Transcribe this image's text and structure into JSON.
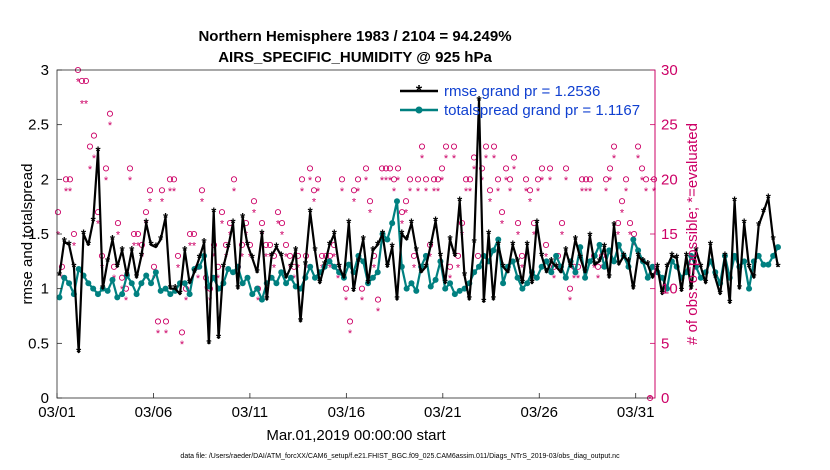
{
  "chart_data": {
    "type": "line",
    "title_line1": "Northern Hemisphere 1983 / 2104 = 94.249%",
    "title_line2": "AIRS_SPECIFIC_HUMIDITY @ 925 hPa",
    "xlabel": "Mar.01,2019 00:00:00 start",
    "ylabel": "rmse and totalspread",
    "ylabel_right": "# of obs: o=possible; *=evaluated",
    "footer": "data file: /Users/raeder/DAI/ATM_forcXX/CAM6_setup/f.e21.FHIST_BGC.f09_025.CAM6assim.011/Diags_NTrS_2019-03/obs_diag_output.nc",
    "x_ticks": [
      "03/01",
      "03/06",
      "03/11",
      "03/16",
      "03/21",
      "03/26",
      "03/31"
    ],
    "x_tick_days": [
      1,
      6,
      11,
      16,
      21,
      26,
      31
    ],
    "xlim": [
      1,
      32
    ],
    "ylim": [
      0,
      3
    ],
    "y_ticks": [
      "0",
      "0.5",
      "1",
      "1.5",
      "2",
      "2.5",
      "3"
    ],
    "ylim_right": [
      0,
      30
    ],
    "y_ticks_right": [
      "0",
      "5",
      "10",
      "15",
      "20",
      "25",
      "30"
    ],
    "legend": {
      "position": "top-right",
      "entries": [
        "rmse grand pr = 1.2536",
        "totalspread grand pr = 1.1167"
      ]
    },
    "colors": {
      "rmse": "#000000",
      "spread": "#008080",
      "obs": "#cc0066",
      "legend_text": "#1040d0"
    },
    "series": [
      {
        "name": "rmse",
        "start_day": 1.125,
        "step_day": 0.25,
        "values": [
          1.12,
          1.43,
          1.4,
          1.2,
          0.42,
          1.5,
          1.4,
          1.62,
          2.26,
          1.0,
          1.25,
          1.45,
          1.2,
          1.35,
          1.12,
          1.35,
          1.1,
          1.3,
          1.6,
          1.4,
          1.38,
          1.45,
          1.65,
          1.0,
          1.0,
          0.95,
          1.35,
          1.05,
          1.15,
          1.28,
          1.42,
          0.5,
          1.7,
          0.55,
          1.2,
          1.38,
          1.6,
          1.0,
          1.65,
          1.4,
          1.28,
          1.15,
          1.5,
          0.9,
          1.3,
          1.38,
          1.3,
          1.1,
          1.2,
          1.35,
          0.7,
          1.22,
          1.7,
          1.35,
          1.05,
          1.22,
          1.4,
          1.5,
          1.2,
          1.1,
          1.6,
          0.98,
          1.25,
          1.45,
          1.05,
          1.35,
          1.4,
          1.5,
          1.2,
          1.38,
          0.9,
          1.5,
          1.45,
          1.6,
          1.35,
          1.15,
          1.2,
          1.4,
          1.62,
          1.3,
          1.05,
          1.45,
          1.3,
          1.8,
          1.12,
          0.9,
          1.42,
          2.72,
          0.88,
          1.5,
          0.9,
          1.4,
          1.2,
          1.15,
          1.4,
          1.25,
          1.05,
          1.4,
          1.05,
          1.6,
          1.3,
          1.15,
          1.25,
          1.2,
          1.15,
          1.35,
          1.2,
          1.45,
          1.28,
          1.15,
          1.48,
          1.22,
          1.25,
          1.38,
          1.1,
          1.58,
          1.22,
          1.3,
          1.25,
          1.0,
          1.3,
          1.25,
          1.22,
          1.1,
          1.2,
          0.95,
          1.2,
          1.3,
          1.28,
          0.98,
          1.3,
          1.0,
          1.35,
          1.2,
          1.05,
          1.4,
          1.1,
          0.95,
          1.3,
          0.87,
          1.8,
          1.0,
          1.6,
          1.2,
          1.1,
          1.58,
          1.7,
          1.83,
          1.45,
          1.2
        ]
      },
      {
        "name": "totalspread",
        "start_day": 1.125,
        "step_day": 0.25,
        "values": [
          0.92,
          1.1,
          1.05,
          0.95,
          1.18,
          1.12,
          1.05,
          1.0,
          0.95,
          1.0,
          0.98,
          1.08,
          0.92,
          0.95,
          1.12,
          1.05,
          0.95,
          1.05,
          1.12,
          1.05,
          1.15,
          0.98,
          1.0,
          0.95,
          0.98,
          1.05,
          1.05,
          0.95,
          1.18,
          1.2,
          1.3,
          1.02,
          1.1,
          1.0,
          1.05,
          1.18,
          1.15,
          1.2,
          1.05,
          1.1,
          0.95,
          1.0,
          0.9,
          1.05,
          1.1,
          1.05,
          1.15,
          1.05,
          1.1,
          1.02,
          1.0,
          1.1,
          1.2,
          1.1,
          1.15,
          1.2,
          1.25,
          1.2,
          1.15,
          1.1,
          1.22,
          1.15,
          1.3,
          1.25,
          1.05,
          1.1,
          1.15,
          1.5,
          1.45,
          1.6,
          1.8,
          1.2,
          1.0,
          1.05,
          0.98,
          1.2,
          1.3,
          1.02,
          1.08,
          1.25,
          1.0,
          1.05,
          0.95,
          0.98,
          1.0,
          1.05,
          1.15,
          1.2,
          1.3,
          1.25,
          1.35,
          1.45,
          1.05,
          1.2,
          1.25,
          1.1,
          1.0,
          1.05,
          1.15,
          1.1,
          1.2,
          1.25,
          1.15,
          1.3,
          1.2,
          1.1,
          1.25,
          1.15,
          1.38,
          1.1,
          1.25,
          1.3,
          1.4,
          1.2,
          1.35,
          1.25,
          1.4,
          1.3,
          1.2,
          1.45,
          1.35,
          1.25,
          1.1,
          1.2,
          1.15,
          1.1,
          1.0,
          1.25,
          1.2,
          1.1,
          1.15,
          1.3,
          1.2,
          1.1,
          1.15,
          1.25,
          1.15,
          1.05,
          1.3,
          1.1,
          1.3,
          1.2,
          1.25,
          1.0,
          1.25,
          1.3,
          1.22,
          1.22,
          1.3,
          1.38
        ]
      }
    ],
    "obs_possible": [
      17,
      12,
      20,
      20,
      15,
      30,
      29,
      29,
      23,
      24,
      17,
      13,
      21,
      26,
      12,
      16,
      11,
      10,
      21,
      15,
      15,
      14,
      17,
      19,
      12,
      7,
      19,
      7,
      20,
      20,
      13,
      6,
      10,
      15,
      15,
      12,
      19,
      11,
      10,
      14,
      12,
      17,
      14,
      16,
      20,
      12,
      14,
      16,
      14,
      18,
      10,
      16,
      14,
      14,
      13,
      17,
      16,
      14,
      13,
      12,
      13,
      20,
      13,
      21,
      19,
      20,
      13,
      13,
      13,
      14,
      12,
      20,
      10,
      7,
      19,
      20,
      10,
      21,
      18,
      13,
      9,
      21,
      21,
      21,
      20,
      21,
      17,
      18,
      20,
      13,
      20,
      23,
      20,
      14,
      20,
      20,
      21,
      23,
      12,
      23,
      13,
      16,
      20,
      20,
      22,
      13,
      21,
      23,
      19,
      23,
      20,
      17,
      21,
      20,
      22,
      16,
      13,
      20,
      19,
      16,
      20,
      21,
      14,
      21,
      12,
      13,
      16,
      21,
      10,
      12,
      12,
      20,
      20,
      20,
      13,
      12,
      13,
      20,
      21,
      23,
      16,
      18,
      20,
      16,
      15,
      23,
      21,
      20,
      0,
      20
    ],
    "obs_evaluated": [
      15,
      11,
      19,
      19,
      14,
      29,
      27,
      27,
      21,
      22,
      16,
      12,
      20,
      25,
      11,
      15,
      10,
      9,
      20,
      14,
      14,
      13,
      16,
      18,
      11,
      6,
      18,
      6,
      19,
      19,
      12,
      5,
      9,
      14,
      14,
      11,
      18,
      10,
      9,
      13,
      11,
      16,
      13,
      15,
      19,
      11,
      13,
      15,
      13,
      17,
      9,
      15,
      13,
      13,
      12,
      16,
      15,
      13,
      12,
      11,
      12,
      19,
      12,
      20,
      18,
      19,
      12,
      12,
      12,
      13,
      11,
      19,
      9,
      6,
      18,
      19,
      9,
      20,
      17,
      12,
      8,
      20,
      20,
      20,
      19,
      20,
      16,
      17,
      19,
      12,
      19,
      22,
      19,
      13,
      19,
      19,
      20,
      22,
      11,
      22,
      12,
      15,
      19,
      19,
      21,
      12,
      20,
      22,
      18,
      22,
      19,
      16,
      20,
      19,
      21,
      15,
      12,
      19,
      18,
      15,
      19,
      20,
      13,
      20,
      11,
      12,
      15,
      20,
      9,
      11,
      11,
      19,
      19,
      19,
      12,
      11,
      12,
      19,
      20,
      22,
      15,
      17,
      19,
      15,
      14,
      22,
      20,
      19,
      0,
      19
    ]
  }
}
